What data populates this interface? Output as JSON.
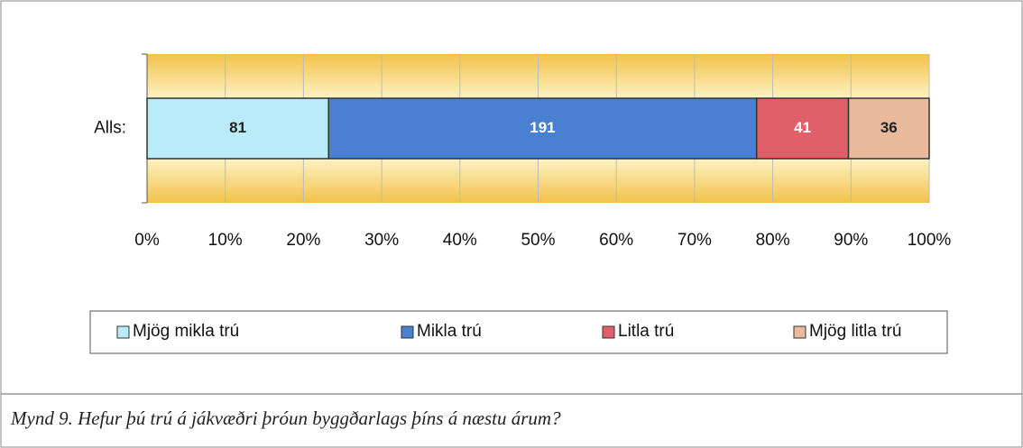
{
  "chart_data": {
    "type": "bar",
    "orientation": "horizontal",
    "stack": "percent",
    "categories": [
      "Alls:"
    ],
    "series": [
      {
        "name": "Mjög mikla trú",
        "color": "#b9ecf8",
        "label_color": "#222222",
        "values": [
          81
        ]
      },
      {
        "name": "Mikla trú",
        "color": "#4a80d2",
        "label_color": "#ffffff",
        "values": [
          191
        ]
      },
      {
        "name": "Litla trú",
        "color": "#e0606a",
        "label_color": "#ffffff",
        "values": [
          41
        ]
      },
      {
        "name": "Mjög litla trú",
        "color": "#e9b99c",
        "label_color": "#222222",
        "values": [
          36
        ]
      }
    ],
    "xlim": [
      0,
      100
    ],
    "xticks": [
      {
        "value": 0,
        "label": "0%"
      },
      {
        "value": 10,
        "label": "10%"
      },
      {
        "value": 20,
        "label": "20%"
      },
      {
        "value": 30,
        "label": "30%"
      },
      {
        "value": 40,
        "label": "40%"
      },
      {
        "value": 50,
        "label": "50%"
      },
      {
        "value": 60,
        "label": "60%"
      },
      {
        "value": 70,
        "label": "70%"
      },
      {
        "value": 80,
        "label": "80%"
      },
      {
        "value": 90,
        "label": "90%"
      },
      {
        "value": 100,
        "label": "100%"
      }
    ],
    "grid": true,
    "legend": "bottom",
    "caption": "Mynd 9.  Hefur þú trú á jákvæðri þróun byggðarlags þíns á næstu árum?"
  }
}
